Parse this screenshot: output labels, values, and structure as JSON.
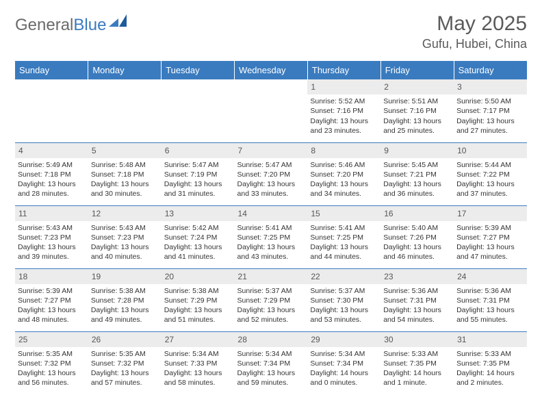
{
  "logo": {
    "text1": "General",
    "text2": "Blue"
  },
  "title": "May 2025",
  "location": "Gufu, Hubei, China",
  "colors": {
    "header_bg": "#3a7bbf",
    "header_text": "#ffffff",
    "daynum_bg": "#ececec",
    "border": "#3a7bbf",
    "text": "#333333",
    "title_text": "#5a5a5a"
  },
  "weekdays": [
    "Sunday",
    "Monday",
    "Tuesday",
    "Wednesday",
    "Thursday",
    "Friday",
    "Saturday"
  ],
  "weeks": [
    [
      {
        "n": "",
        "sr": "",
        "ss": "",
        "dl": ""
      },
      {
        "n": "",
        "sr": "",
        "ss": "",
        "dl": ""
      },
      {
        "n": "",
        "sr": "",
        "ss": "",
        "dl": ""
      },
      {
        "n": "",
        "sr": "",
        "ss": "",
        "dl": ""
      },
      {
        "n": "1",
        "sr": "Sunrise: 5:52 AM",
        "ss": "Sunset: 7:16 PM",
        "dl": "Daylight: 13 hours and 23 minutes."
      },
      {
        "n": "2",
        "sr": "Sunrise: 5:51 AM",
        "ss": "Sunset: 7:16 PM",
        "dl": "Daylight: 13 hours and 25 minutes."
      },
      {
        "n": "3",
        "sr": "Sunrise: 5:50 AM",
        "ss": "Sunset: 7:17 PM",
        "dl": "Daylight: 13 hours and 27 minutes."
      }
    ],
    [
      {
        "n": "4",
        "sr": "Sunrise: 5:49 AM",
        "ss": "Sunset: 7:18 PM",
        "dl": "Daylight: 13 hours and 28 minutes."
      },
      {
        "n": "5",
        "sr": "Sunrise: 5:48 AM",
        "ss": "Sunset: 7:18 PM",
        "dl": "Daylight: 13 hours and 30 minutes."
      },
      {
        "n": "6",
        "sr": "Sunrise: 5:47 AM",
        "ss": "Sunset: 7:19 PM",
        "dl": "Daylight: 13 hours and 31 minutes."
      },
      {
        "n": "7",
        "sr": "Sunrise: 5:47 AM",
        "ss": "Sunset: 7:20 PM",
        "dl": "Daylight: 13 hours and 33 minutes."
      },
      {
        "n": "8",
        "sr": "Sunrise: 5:46 AM",
        "ss": "Sunset: 7:20 PM",
        "dl": "Daylight: 13 hours and 34 minutes."
      },
      {
        "n": "9",
        "sr": "Sunrise: 5:45 AM",
        "ss": "Sunset: 7:21 PM",
        "dl": "Daylight: 13 hours and 36 minutes."
      },
      {
        "n": "10",
        "sr": "Sunrise: 5:44 AM",
        "ss": "Sunset: 7:22 PM",
        "dl": "Daylight: 13 hours and 37 minutes."
      }
    ],
    [
      {
        "n": "11",
        "sr": "Sunrise: 5:43 AM",
        "ss": "Sunset: 7:23 PM",
        "dl": "Daylight: 13 hours and 39 minutes."
      },
      {
        "n": "12",
        "sr": "Sunrise: 5:43 AM",
        "ss": "Sunset: 7:23 PM",
        "dl": "Daylight: 13 hours and 40 minutes."
      },
      {
        "n": "13",
        "sr": "Sunrise: 5:42 AM",
        "ss": "Sunset: 7:24 PM",
        "dl": "Daylight: 13 hours and 41 minutes."
      },
      {
        "n": "14",
        "sr": "Sunrise: 5:41 AM",
        "ss": "Sunset: 7:25 PM",
        "dl": "Daylight: 13 hours and 43 minutes."
      },
      {
        "n": "15",
        "sr": "Sunrise: 5:41 AM",
        "ss": "Sunset: 7:25 PM",
        "dl": "Daylight: 13 hours and 44 minutes."
      },
      {
        "n": "16",
        "sr": "Sunrise: 5:40 AM",
        "ss": "Sunset: 7:26 PM",
        "dl": "Daylight: 13 hours and 46 minutes."
      },
      {
        "n": "17",
        "sr": "Sunrise: 5:39 AM",
        "ss": "Sunset: 7:27 PM",
        "dl": "Daylight: 13 hours and 47 minutes."
      }
    ],
    [
      {
        "n": "18",
        "sr": "Sunrise: 5:39 AM",
        "ss": "Sunset: 7:27 PM",
        "dl": "Daylight: 13 hours and 48 minutes."
      },
      {
        "n": "19",
        "sr": "Sunrise: 5:38 AM",
        "ss": "Sunset: 7:28 PM",
        "dl": "Daylight: 13 hours and 49 minutes."
      },
      {
        "n": "20",
        "sr": "Sunrise: 5:38 AM",
        "ss": "Sunset: 7:29 PM",
        "dl": "Daylight: 13 hours and 51 minutes."
      },
      {
        "n": "21",
        "sr": "Sunrise: 5:37 AM",
        "ss": "Sunset: 7:29 PM",
        "dl": "Daylight: 13 hours and 52 minutes."
      },
      {
        "n": "22",
        "sr": "Sunrise: 5:37 AM",
        "ss": "Sunset: 7:30 PM",
        "dl": "Daylight: 13 hours and 53 minutes."
      },
      {
        "n": "23",
        "sr": "Sunrise: 5:36 AM",
        "ss": "Sunset: 7:31 PM",
        "dl": "Daylight: 13 hours and 54 minutes."
      },
      {
        "n": "24",
        "sr": "Sunrise: 5:36 AM",
        "ss": "Sunset: 7:31 PM",
        "dl": "Daylight: 13 hours and 55 minutes."
      }
    ],
    [
      {
        "n": "25",
        "sr": "Sunrise: 5:35 AM",
        "ss": "Sunset: 7:32 PM",
        "dl": "Daylight: 13 hours and 56 minutes."
      },
      {
        "n": "26",
        "sr": "Sunrise: 5:35 AM",
        "ss": "Sunset: 7:32 PM",
        "dl": "Daylight: 13 hours and 57 minutes."
      },
      {
        "n": "27",
        "sr": "Sunrise: 5:34 AM",
        "ss": "Sunset: 7:33 PM",
        "dl": "Daylight: 13 hours and 58 minutes."
      },
      {
        "n": "28",
        "sr": "Sunrise: 5:34 AM",
        "ss": "Sunset: 7:34 PM",
        "dl": "Daylight: 13 hours and 59 minutes."
      },
      {
        "n": "29",
        "sr": "Sunrise: 5:34 AM",
        "ss": "Sunset: 7:34 PM",
        "dl": "Daylight: 14 hours and 0 minutes."
      },
      {
        "n": "30",
        "sr": "Sunrise: 5:33 AM",
        "ss": "Sunset: 7:35 PM",
        "dl": "Daylight: 14 hours and 1 minute."
      },
      {
        "n": "31",
        "sr": "Sunrise: 5:33 AM",
        "ss": "Sunset: 7:35 PM",
        "dl": "Daylight: 14 hours and 2 minutes."
      }
    ]
  ]
}
